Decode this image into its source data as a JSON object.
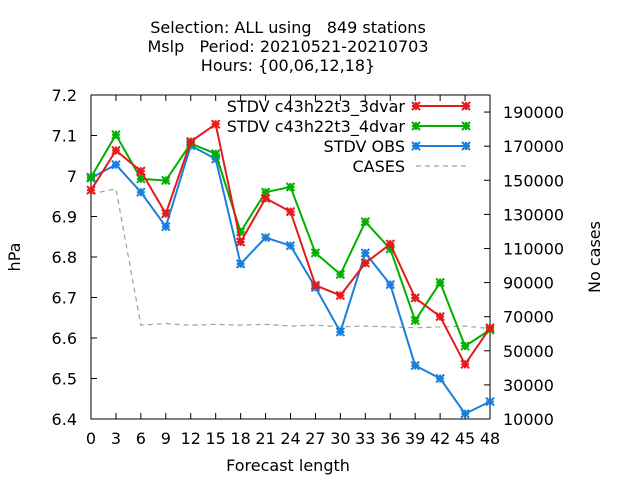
{
  "chart_data": {
    "type": "line",
    "title_lines": [
      "Selection: ALL using   849 stations",
      "Mslp   Period: 20210521-20210703",
      "Hours: {00,06,12,18}"
    ],
    "xlabel": "Forecast length",
    "ylabel": "hPa",
    "y2label": "No cases",
    "x": [
      0,
      3,
      6,
      9,
      12,
      15,
      18,
      21,
      24,
      27,
      30,
      33,
      36,
      39,
      42,
      45,
      48
    ],
    "xlim": [
      0,
      48
    ],
    "ylim": [
      6.4,
      7.2
    ],
    "y2lim": [
      10000,
      200000
    ],
    "y_ticks": [
      6.4,
      6.5,
      6.6,
      6.7,
      6.8,
      6.9,
      7,
      7.1,
      7.2
    ],
    "y_tick_labels": [
      "6.4",
      "6.5",
      "6.6",
      "6.7",
      "6.8",
      "6.9",
      "7",
      "7.1",
      "7.2"
    ],
    "y2_ticks": [
      10000,
      30000,
      50000,
      70000,
      90000,
      110000,
      130000,
      150000,
      170000,
      190000
    ],
    "y2_tick_labels": [
      "10000",
      "30000",
      "50000",
      "70000",
      "90000",
      "110000",
      "130000",
      "150000",
      "170000",
      "190000"
    ],
    "grid": false,
    "legend_position": "top-right",
    "series": [
      {
        "name": "STDV c43h22t3_3dvar",
        "color": "#e41a1c",
        "axis": "y",
        "values": [
          6.965,
          7.063,
          7.012,
          6.907,
          7.085,
          7.128,
          6.837,
          6.945,
          6.912,
          6.73,
          6.705,
          6.785,
          6.832,
          6.699,
          6.653,
          6.535,
          6.625
        ]
      },
      {
        "name": "STDV c43h22t3_4dvar",
        "color": "#00b000",
        "axis": "y",
        "values": [
          6.997,
          7.102,
          6.993,
          6.989,
          7.08,
          7.055,
          6.862,
          6.96,
          6.973,
          6.81,
          6.757,
          6.887,
          6.82,
          6.643,
          6.737,
          6.58,
          6.62
        ]
      },
      {
        "name": "STDV OBS",
        "color": "#1a7fdc",
        "axis": "y",
        "values": [
          6.995,
          7.028,
          6.96,
          6.875,
          7.075,
          7.042,
          6.783,
          6.848,
          6.828,
          6.725,
          6.615,
          6.81,
          6.732,
          6.532,
          6.5,
          6.413,
          6.443
        ]
      },
      {
        "name": "CASES",
        "color": "#a0a0a0",
        "axis": "y2",
        "values": [
          142000,
          145000,
          65000,
          66000,
          65000,
          65500,
          65000,
          65500,
          64500,
          65000,
          64000,
          64500,
          64000,
          63500,
          64000,
          64500,
          63000
        ]
      }
    ]
  }
}
